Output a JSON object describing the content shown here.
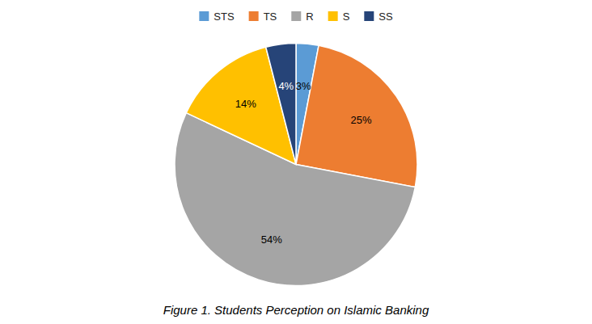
{
  "chart_data": {
    "type": "pie",
    "title": "Figure 1. Students Perception on Islamic Banking",
    "categories": [
      "STS",
      "TS",
      "R",
      "S",
      "SS"
    ],
    "values": [
      3,
      25,
      54,
      14,
      4
    ],
    "value_labels": [
      "3%",
      "25%",
      "54%",
      "14%",
      "4%"
    ],
    "colors": [
      "#5B9BD5",
      "#ED7D31",
      "#A5A5A5",
      "#FFC000",
      "#264478"
    ],
    "legend": "top",
    "data_labels": true
  }
}
